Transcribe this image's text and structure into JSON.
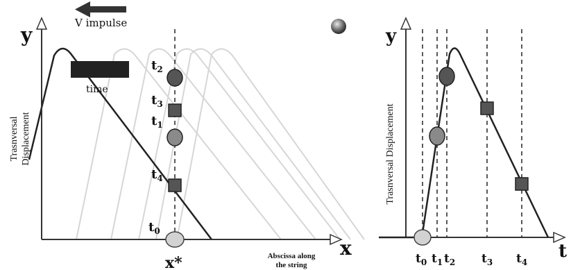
{
  "left_panel": {
    "y_axis_label": "y",
    "x_axis_label": "x",
    "vertical_title": [
      "Trasnversal",
      "Displacement"
    ],
    "impulse_label": "V impulse",
    "time_label": "time",
    "x_marker_label": "x*",
    "x_caption": [
      "Abscissa along",
      "the string"
    ],
    "markers": [
      {
        "label": "t",
        "sub": "2",
        "shape": "circle"
      },
      {
        "label": "t",
        "sub": "3",
        "shape": "square"
      },
      {
        "label": "t",
        "sub": "1",
        "shape": "circle"
      },
      {
        "label": "t",
        "sub": "4",
        "shape": "square"
      },
      {
        "label": "t",
        "sub": "0",
        "shape": "circle-light"
      }
    ]
  },
  "right_panel": {
    "y_axis_label": "y",
    "t_axis_label": "t",
    "vertical_title": "Trasnversal Displacement",
    "time_ticks": [
      {
        "label": "t",
        "sub": "0"
      },
      {
        "label": "t",
        "sub": "1"
      },
      {
        "label": "t",
        "sub": "2"
      },
      {
        "label": "t",
        "sub": "3"
      },
      {
        "label": "t",
        "sub": "4"
      }
    ]
  },
  "colors": {
    "axis": "#333333",
    "main_curve": "#222222",
    "ghost_curve": "#d6d6d6",
    "marker_dark": "#555555",
    "marker_mid": "#8a8a8a",
    "marker_light": "#d2d2d2"
  }
}
